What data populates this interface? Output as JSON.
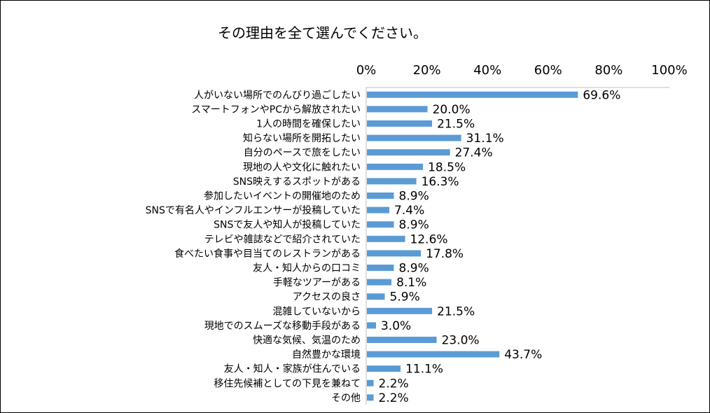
{
  "chart_data": {
    "type": "bar",
    "orientation": "horizontal",
    "title": "その理由を全て選んでください。",
    "categories": [
      "人がいない場所でのんびり過ごしたい",
      "スマートフォンやPCから解放されたい",
      "1人の時間を確保したい",
      "知らない場所を開拓したい",
      "自分のペースで旅をしたい",
      "現地の人や文化に触れたい",
      "SNS映えするスポットがある",
      "参加したいイベントの開催地のため",
      "SNSで有名人やインフルエンサーが投稿していた",
      "SNSで友人や知人が投稿していた",
      "テレビや雑誌などで紹介されていた",
      "食べたい食事や目当てのレストランがある",
      "友人・知人からの口コミ",
      "手軽なツアーがある",
      "アクセスの良さ",
      "混雑していないから",
      "現地でのスムーズな移動手段がある",
      "快適な気候、気温のため",
      "自然豊かな環境",
      "友人・知人・家族が住んでいる",
      "移住先候補としての下見を兼ねて",
      "その他"
    ],
    "values": [
      69.6,
      20.0,
      21.5,
      31.1,
      27.4,
      18.5,
      16.3,
      8.9,
      7.4,
      8.9,
      12.6,
      17.8,
      8.9,
      8.1,
      5.9,
      21.5,
      3.0,
      23.0,
      43.7,
      11.1,
      2.2,
      2.2
    ],
    "value_labels": [
      "69.6%",
      "20.0%",
      "21.5%",
      "31.1%",
      "27.4%",
      "18.5%",
      "16.3%",
      "8.9%",
      "7.4%",
      "8.9%",
      "12.6%",
      "17.8%",
      "8.9%",
      "8.1%",
      "5.9%",
      "21.5%",
      "3.0%",
      "23.0%",
      "43.7%",
      "11.1%",
      "2.2%",
      "2.2%"
    ],
    "xlim": [
      0,
      100
    ],
    "ticks": [
      0,
      20,
      40,
      60,
      80,
      100
    ],
    "tick_labels": [
      "0%",
      "20%",
      "40%",
      "60%",
      "80%",
      "100%"
    ],
    "axis_position": "top",
    "grid": false,
    "bar_color": "#5b9bd5"
  }
}
